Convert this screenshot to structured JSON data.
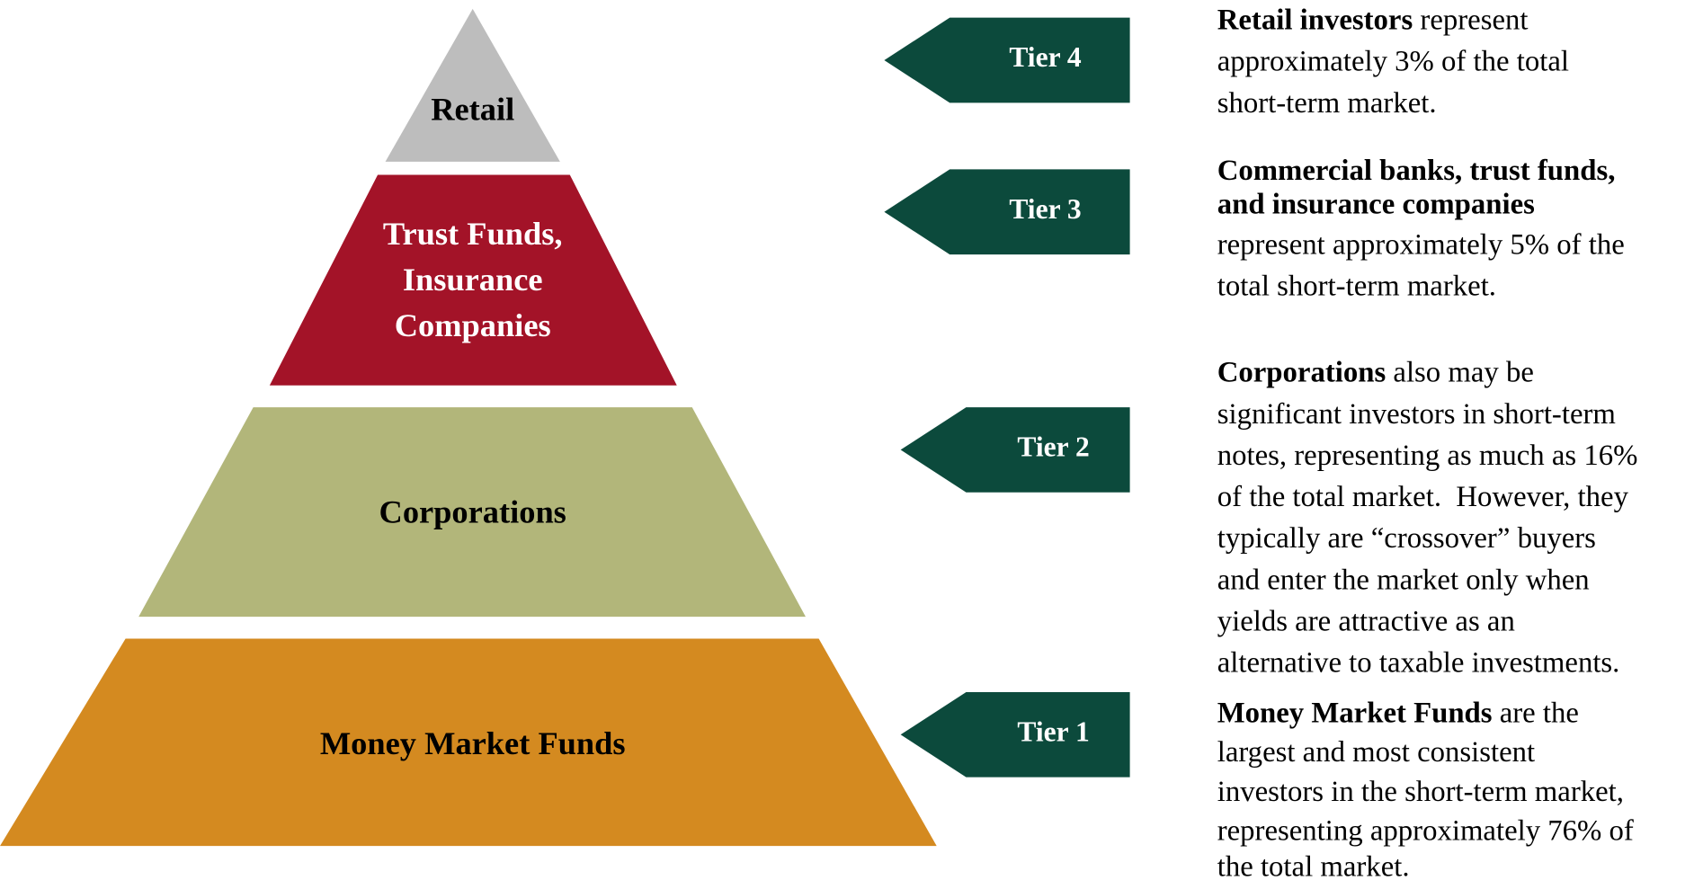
{
  "pyramid": [
    {
      "lines": [
        "Retail"
      ],
      "color": "#bdbdbd",
      "text_color": "#000000"
    },
    {
      "lines": [
        "Trust Funds,",
        "Insurance",
        "Companies"
      ],
      "color": "#a31328",
      "text_color": "#ffffff"
    },
    {
      "lines": [
        "Corporations"
      ],
      "color": "#b2b67a",
      "text_color": "#000000"
    },
    {
      "lines": [
        "Money Market Funds"
      ],
      "color": "#d48a20",
      "text_color": "#000000"
    }
  ],
  "tiers": [
    "Tier 4",
    "Tier 3",
    "Tier 2",
    "Tier 1"
  ],
  "arrow_color": "#0c4a3c",
  "descriptions": [
    {
      "lines": [
        [
          {
            "text": "Retail investors",
            "bold": true
          },
          {
            "text": " represent",
            "bold": false
          }
        ],
        [
          {
            "text": "approximately 3% of the total",
            "bold": false
          }
        ],
        [
          {
            "text": "short-term market.",
            "bold": false
          }
        ]
      ]
    },
    {
      "lines": [
        [
          {
            "text": "Commercial banks, trust funds,",
            "bold": true
          }
        ],
        [
          {
            "text": "and insurance companies",
            "bold": true
          }
        ],
        [
          {
            "text": "represent approximately 5% of the",
            "bold": false
          }
        ],
        [
          {
            "text": "total short-term market.",
            "bold": false
          }
        ]
      ]
    },
    {
      "lines": [
        [
          {
            "text": "Corporations",
            "bold": true
          },
          {
            "text": " also may be",
            "bold": false
          }
        ],
        [
          {
            "text": "significant investors in short-term",
            "bold": false
          }
        ],
        [
          {
            "text": "notes, representing as much as 16%",
            "bold": false
          }
        ],
        [
          {
            "text": "of the total market.  However, they",
            "bold": false
          }
        ],
        [
          {
            "text": "typically are “crossover” buyers",
            "bold": false
          }
        ],
        [
          {
            "text": "and enter the market only when",
            "bold": false
          }
        ],
        [
          {
            "text": "yields are attractive as an",
            "bold": false
          }
        ],
        [
          {
            "text": "alternative to taxable investments.",
            "bold": false
          }
        ]
      ]
    },
    {
      "lines": [
        [
          {
            "text": "Money Market Funds",
            "bold": true
          },
          {
            "text": " are the",
            "bold": false
          }
        ],
        [
          {
            "text": "largest and most consistent",
            "bold": false
          }
        ],
        [
          {
            "text": "investors in the short-term market,",
            "bold": false
          }
        ],
        [
          {
            "text": "representing approximately 76% of",
            "bold": false
          }
        ],
        [
          {
            "text": "the total market.",
            "bold": false
          }
        ]
      ]
    }
  ]
}
